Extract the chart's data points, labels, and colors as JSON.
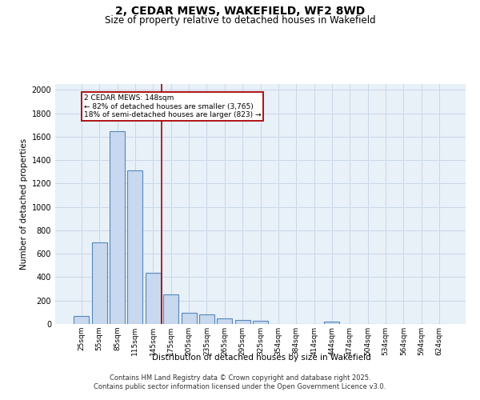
{
  "title": "2, CEDAR MEWS, WAKEFIELD, WF2 8WD",
  "subtitle": "Size of property relative to detached houses in Wakefield",
  "xlabel": "Distribution of detached houses by size in Wakefield",
  "ylabel": "Number of detached properties",
  "bar_labels": [
    "25sqm",
    "55sqm",
    "85sqm",
    "115sqm",
    "145sqm",
    "175sqm",
    "205sqm",
    "235sqm",
    "265sqm",
    "295sqm",
    "325sqm",
    "354sqm",
    "384sqm",
    "414sqm",
    "444sqm",
    "474sqm",
    "504sqm",
    "534sqm",
    "564sqm",
    "594sqm",
    "624sqm"
  ],
  "bar_values": [
    70,
    700,
    1650,
    1310,
    440,
    255,
    95,
    85,
    50,
    35,
    30,
    0,
    0,
    0,
    20,
    0,
    0,
    0,
    0,
    0,
    0
  ],
  "bar_color": "#c8d8ee",
  "bar_edge_color": "#5588bb",
  "ylim": [
    0,
    2050
  ],
  "yticks": [
    0,
    200,
    400,
    600,
    800,
    1000,
    1200,
    1400,
    1600,
    1800,
    2000
  ],
  "annotation_title": "2 CEDAR MEWS: 148sqm",
  "annotation_line1": "← 82% of detached houses are smaller (3,765)",
  "annotation_line2": "18% of semi-detached houses are larger (823) →",
  "vline_color": "#aa0000",
  "vline_x": 4.5,
  "grid_color": "#c8d8e8",
  "bg_color": "#e8f0f8",
  "footer_line1": "Contains HM Land Registry data © Crown copyright and database right 2025.",
  "footer_line2": "Contains public sector information licensed under the Open Government Licence v3.0."
}
